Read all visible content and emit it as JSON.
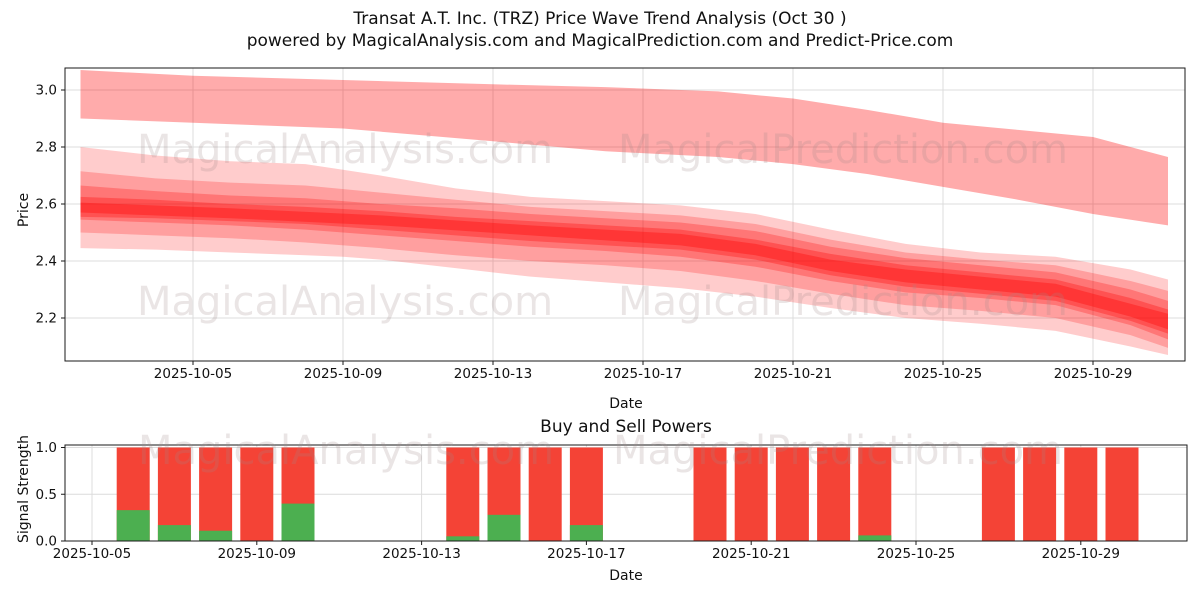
{
  "header": {
    "title": "Transat A.T. Inc. (TRZ) Price Wave Trend Analysis (Oct 30 )",
    "subtitle": "powered by MagicalAnalysis.com and MagicalPrediction.com and Predict-Price.com"
  },
  "watermark_texts": {
    "analysis": "MagicalAnalysis.com",
    "prediction": "MagicalPrediction.com"
  },
  "colors": {
    "band_red": "#ff0000",
    "bar_red": "#f44336",
    "bar_green": "#4caf50",
    "grid": "#dcdcdc",
    "spine": "#1a1a1a",
    "watermark": "rgba(160,135,135,0.22)"
  },
  "chart_data": [
    {
      "type": "area",
      "name": "price-wave-trend",
      "ylabel": "Price",
      "xlabel": "Date",
      "yticks": [
        2.2,
        2.4,
        2.6,
        2.8,
        3.0
      ],
      "ylim": [
        2.05,
        3.08
      ],
      "xtick_labels": [
        "2025-10-05",
        "2025-10-09",
        "2025-10-13",
        "2025-10-17",
        "2025-10-21",
        "2025-10-25",
        "2025-10-29"
      ],
      "grid": true,
      "bands": [
        {
          "name": "upper-forecast",
          "opacity": 0.33,
          "points": [
            [
              2,
              3.07,
              2.9
            ],
            [
              5,
              3.05,
              2.885
            ],
            [
              9,
              3.035,
              2.865
            ],
            [
              13,
              3.02,
              2.82
            ],
            [
              16,
              3.01,
              2.785
            ],
            [
              19,
              2.995,
              2.765
            ],
            [
              21,
              2.97,
              2.74
            ],
            [
              23,
              2.93,
              2.705
            ],
            [
              25,
              2.885,
              2.66
            ],
            [
              27,
              2.86,
              2.615
            ],
            [
              29,
              2.835,
              2.565
            ],
            [
              31,
              2.765,
              2.525
            ]
          ]
        },
        {
          "name": "cluster-outer",
          "opacity": 0.2,
          "points": [
            [
              2,
              2.8,
              2.445
            ],
            [
              4,
              2.77,
              2.44
            ],
            [
              6,
              2.75,
              2.43
            ],
            [
              8,
              2.74,
              2.42
            ],
            [
              9,
              2.72,
              2.415
            ],
            [
              10,
              2.7,
              2.405
            ],
            [
              12,
              2.655,
              2.375
            ],
            [
              14,
              2.625,
              2.345
            ],
            [
              16,
              2.61,
              2.325
            ],
            [
              18,
              2.595,
              2.305
            ],
            [
              20,
              2.565,
              2.275
            ],
            [
              22,
              2.51,
              2.235
            ],
            [
              24,
              2.46,
              2.2
            ],
            [
              26,
              2.43,
              2.18
            ],
            [
              28,
              2.415,
              2.155
            ],
            [
              30,
              2.37,
              2.1
            ],
            [
              31,
              2.335,
              2.07
            ]
          ]
        },
        {
          "name": "cluster-mid",
          "opacity": 0.22,
          "points": [
            [
              2,
              2.715,
              2.5
            ],
            [
              4,
              2.69,
              2.49
            ],
            [
              6,
              2.675,
              2.48
            ],
            [
              8,
              2.665,
              2.465
            ],
            [
              10,
              2.64,
              2.445
            ],
            [
              12,
              2.615,
              2.42
            ],
            [
              14,
              2.59,
              2.4
            ],
            [
              16,
              2.575,
              2.385
            ],
            [
              18,
              2.56,
              2.365
            ],
            [
              20,
              2.53,
              2.33
            ],
            [
              22,
              2.475,
              2.285
            ],
            [
              24,
              2.43,
              2.245
            ],
            [
              26,
              2.405,
              2.225
            ],
            [
              28,
              2.385,
              2.2
            ],
            [
              30,
              2.33,
              2.14
            ],
            [
              31,
              2.295,
              2.095
            ]
          ]
        },
        {
          "name": "cluster-core",
          "opacity": 0.26,
          "points": [
            [
              2,
              2.665,
              2.545
            ],
            [
              4,
              2.645,
              2.535
            ],
            [
              6,
              2.63,
              2.525
            ],
            [
              8,
              2.62,
              2.51
            ],
            [
              10,
              2.6,
              2.49
            ],
            [
              12,
              2.585,
              2.47
            ],
            [
              14,
              2.565,
              2.45
            ],
            [
              16,
              2.55,
              2.435
            ],
            [
              18,
              2.535,
              2.415
            ],
            [
              20,
              2.505,
              2.38
            ],
            [
              22,
              2.45,
              2.33
            ],
            [
              24,
              2.41,
              2.29
            ],
            [
              26,
              2.385,
              2.27
            ],
            [
              28,
              2.36,
              2.245
            ],
            [
              30,
              2.3,
              2.175
            ],
            [
              31,
              2.26,
              2.125
            ]
          ]
        },
        {
          "name": "cluster-inner",
          "opacity": 0.3,
          "points": [
            [
              2,
              2.625,
              2.555
            ],
            [
              4,
              2.615,
              2.55
            ],
            [
              6,
              2.6,
              2.54
            ],
            [
              8,
              2.59,
              2.53
            ],
            [
              10,
              2.575,
              2.51
            ],
            [
              12,
              2.555,
              2.49
            ],
            [
              14,
              2.54,
              2.47
            ],
            [
              16,
              2.525,
              2.455
            ],
            [
              18,
              2.51,
              2.44
            ],
            [
              20,
              2.475,
              2.405
            ],
            [
              22,
              2.425,
              2.35
            ],
            [
              24,
              2.385,
              2.31
            ],
            [
              26,
              2.36,
              2.285
            ],
            [
              28,
              2.335,
              2.26
            ],
            [
              30,
              2.27,
              2.19
            ],
            [
              31,
              2.23,
              2.145
            ]
          ]
        },
        {
          "name": "cluster-center-line",
          "opacity": 0.34,
          "points": [
            [
              2,
              2.605,
              2.57
            ],
            [
              6,
              2.585,
              2.55
            ],
            [
              10,
              2.56,
              2.525
            ],
            [
              14,
              2.525,
              2.49
            ],
            [
              18,
              2.495,
              2.455
            ],
            [
              20,
              2.46,
              2.42
            ],
            [
              22,
              2.405,
              2.365
            ],
            [
              24,
              2.37,
              2.325
            ],
            [
              26,
              2.345,
              2.3
            ],
            [
              28,
              2.32,
              2.275
            ],
            [
              30,
              2.25,
              2.205
            ],
            [
              31,
              2.215,
              2.16
            ]
          ]
        }
      ]
    },
    {
      "type": "bar",
      "name": "buy-sell-powers",
      "title": "Buy and Sell Powers",
      "ylabel": "Signal Strength",
      "xlabel": "Date",
      "yticks": [
        0.0,
        0.5,
        1.0
      ],
      "ylim": [
        0,
        1.02
      ],
      "xtick_labels": [
        "2025-10-05",
        "2025-10-09",
        "2025-10-13",
        "2025-10-17",
        "2025-10-21",
        "2025-10-25",
        "2025-10-29"
      ],
      "grid": true,
      "dates": [
        "2025-10-06",
        "2025-10-07",
        "2025-10-08",
        "2025-10-09",
        "2025-10-10",
        "2025-10-14",
        "2025-10-15",
        "2025-10-16",
        "2025-10-17",
        "2025-10-20",
        "2025-10-21",
        "2025-10-22",
        "2025-10-23",
        "2025-10-24",
        "2025-10-27",
        "2025-10-28",
        "2025-10-29",
        "2025-10-30"
      ],
      "series": [
        {
          "name": "sell-power",
          "color_key": "bar_red",
          "values": [
            1.0,
            1.0,
            1.0,
            1.0,
            1.0,
            1.0,
            1.0,
            1.0,
            1.0,
            1.0,
            1.0,
            1.0,
            1.0,
            1.0,
            1.0,
            1.0,
            1.0,
            1.0
          ]
        },
        {
          "name": "buy-power",
          "color_key": "bar_green",
          "values": [
            0.33,
            0.17,
            0.11,
            0.0,
            0.4,
            0.05,
            0.28,
            0.0,
            0.17,
            0.0,
            0.0,
            0.0,
            0.0,
            0.06,
            0.0,
            0.0,
            0.0,
            0.0
          ]
        }
      ]
    }
  ]
}
